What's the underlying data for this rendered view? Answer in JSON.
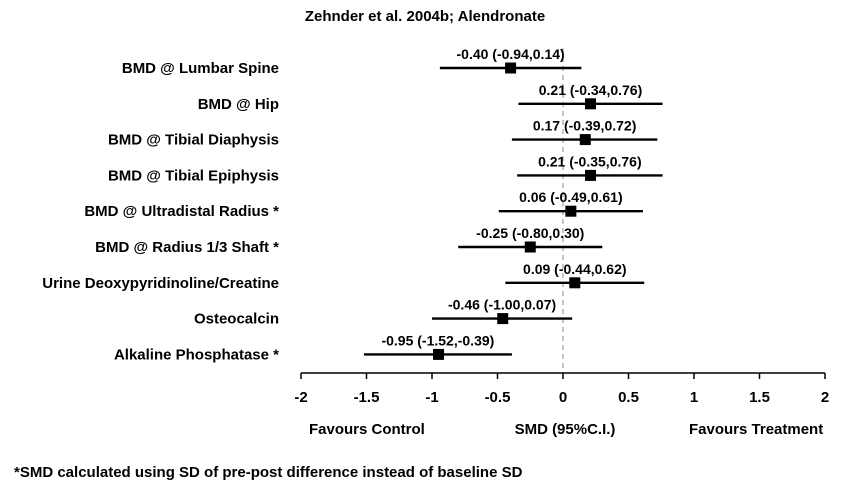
{
  "chart_data": {
    "type": "forest",
    "title": "Zehnder et al. 2004b; Alendronate",
    "xlabel": "SMD (95%C.I.)",
    "xlim": [
      -2,
      2
    ],
    "xticks": [
      -2,
      -1.5,
      -1,
      -0.5,
      0,
      0.5,
      1,
      1.5,
      2
    ],
    "tick_labels": [
      "-2",
      "-1.5",
      "-1",
      "-0.5",
      "0",
      "0.5",
      "1",
      "1.5",
      "2"
    ],
    "reference_line": 0,
    "left_caption": "Favours  Control",
    "right_caption": "Favours  Treatment",
    "rows": [
      {
        "label": "BMD @ Lumbar Spine",
        "smd": -0.4,
        "lo": -0.94,
        "hi": 0.14,
        "text": "-0.40 (-0.94,0.14)"
      },
      {
        "label": "BMD @ Hip",
        "smd": 0.21,
        "lo": -0.34,
        "hi": 0.76,
        "text": "0.21 (-0.34,0.76)"
      },
      {
        "label": "BMD @ Tibial Diaphysis",
        "smd": 0.17,
        "lo": -0.39,
        "hi": 0.72,
        "text": "0.17 (-0.39,0.72)"
      },
      {
        "label": "BMD @ Tibial Epiphysis",
        "smd": 0.21,
        "lo": -0.35,
        "hi": 0.76,
        "text": "0.21 (-0.35,0.76)"
      },
      {
        "label": "BMD @ Ultradistal Radius *",
        "smd": 0.06,
        "lo": -0.49,
        "hi": 0.61,
        "text": "0.06 (-0.49,0.61)"
      },
      {
        "label": "BMD @ Radius 1/3 Shaft *",
        "smd": -0.25,
        "lo": -0.8,
        "hi": 0.3,
        "text": "-0.25 (-0.80,0.30)"
      },
      {
        "label": "Urine Deoxypyridinoline/Creatine",
        "smd": 0.09,
        "lo": -0.44,
        "hi": 0.62,
        "text": "0.09 (-0.44,0.62)"
      },
      {
        "label": "Osteocalcin",
        "smd": -0.46,
        "lo": -1.0,
        "hi": 0.07,
        "text": "-0.46 (-1.00,0.07)"
      },
      {
        "label": "Alkaline Phosphatase *",
        "smd": -0.95,
        "lo": -1.52,
        "hi": -0.39,
        "text": "-0.95 (-1.52,-0.39)"
      }
    ],
    "footnote": "*SMD calculated using SD of pre-post difference instead of baseline SD"
  }
}
